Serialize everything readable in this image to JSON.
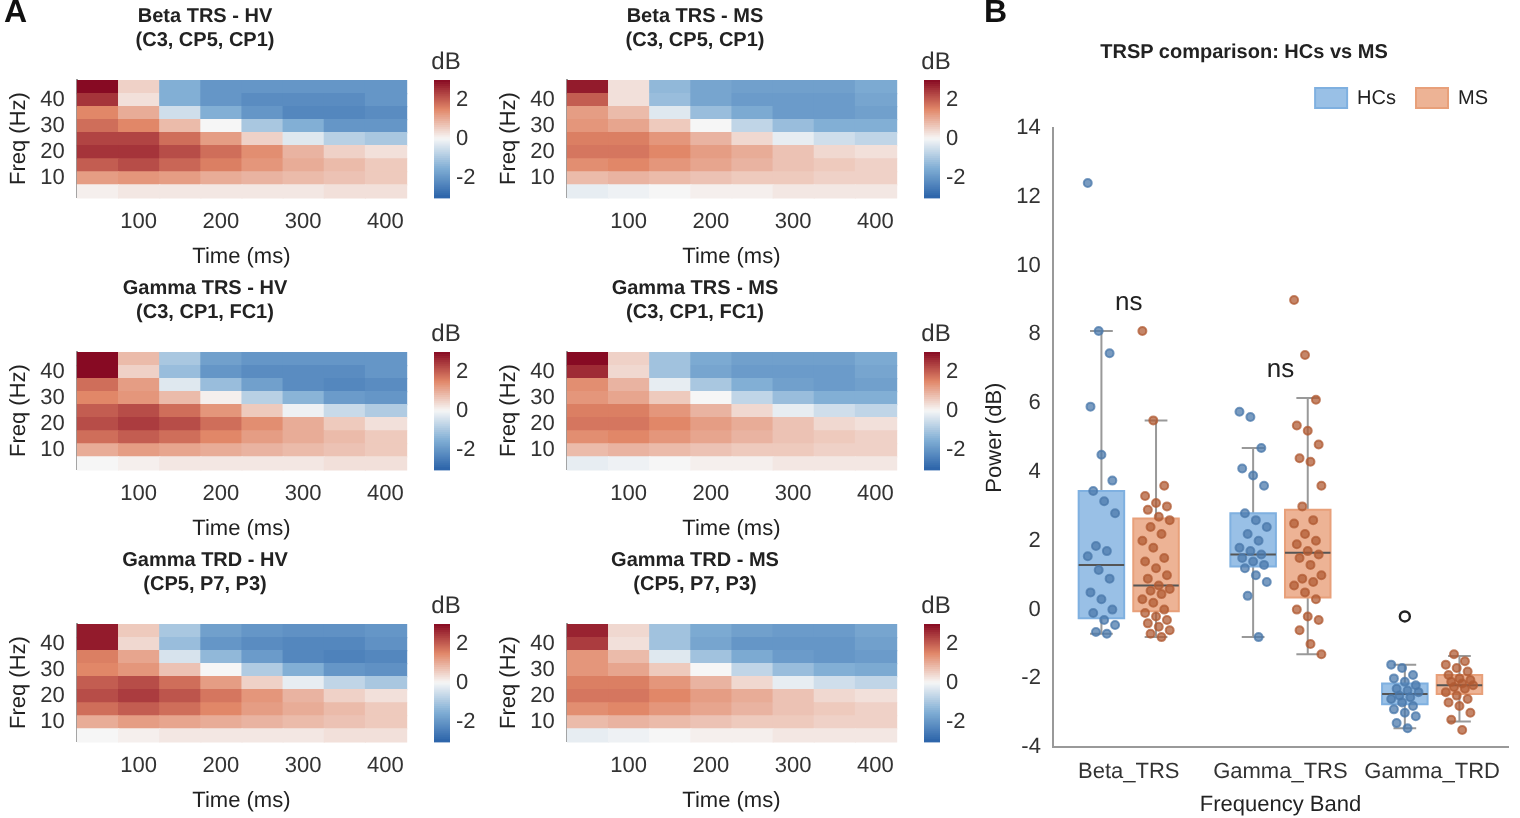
{
  "chart_data": [
    {
      "type": "heatmap",
      "title": "Beta TRS - HV",
      "subtitle": "(C3, CP5, CP1)",
      "xlabel": "Time (ms)",
      "ylabel": "Freq (Hz)",
      "clabel": "dB",
      "annotations": [
        "A"
      ],
      "categories": [
        null,
        "100",
        null,
        "200",
        null,
        "300",
        null,
        "400"
      ],
      "y_categories": [
        null,
        "40",
        null,
        "30",
        null,
        "20",
        null,
        "10",
        null
      ],
      "clim": [
        -3,
        3
      ],
      "cticks": [
        -2,
        0,
        2
      ],
      "cells": [
        [
          3,
          0.5,
          -1.5,
          -2,
          -2,
          -2,
          -2,
          -2
        ],
        [
          2.5,
          0.3,
          -1.5,
          -2,
          -2.2,
          -2.2,
          -2.2,
          -2
        ],
        [
          1.5,
          1,
          -0.5,
          -1.5,
          -2,
          -2.3,
          -2.3,
          -2.2
        ],
        [
          1.8,
          1.5,
          0.8,
          0,
          -1,
          -1.5,
          -2,
          -2
        ],
        [
          2.3,
          2.3,
          1.8,
          1.2,
          0.5,
          -0.3,
          -0.8,
          -1
        ],
        [
          2.5,
          2.5,
          2.2,
          1.8,
          1.4,
          0.9,
          0.5,
          0.3
        ],
        [
          2,
          2.2,
          1.9,
          1.6,
          1.3,
          1,
          0.8,
          0.6
        ],
        [
          1.2,
          1.3,
          1.2,
          1,
          0.9,
          0.8,
          0.7,
          0.6
        ],
        [
          0.1,
          0.2,
          0.2,
          0.2,
          0.2,
          0.2,
          0.3,
          0.3
        ]
      ]
    },
    {
      "type": "heatmap",
      "title": "Beta TRS - MS",
      "subtitle": "(C3, CP5, CP1)",
      "xlabel": "Time (ms)",
      "ylabel": "Freq (Hz)",
      "clabel": "dB",
      "categories": [
        null,
        "100",
        null,
        "200",
        null,
        "300",
        null,
        "400"
      ],
      "y_categories": [
        null,
        "40",
        null,
        "30",
        null,
        "20",
        null,
        "10",
        null
      ],
      "clim": [
        -3,
        3
      ],
      "cticks": [
        -2,
        0,
        2
      ],
      "cells": [
        [
          2.8,
          0.3,
          -1.3,
          -1.7,
          -1.8,
          -1.8,
          -1.8,
          -1.6
        ],
        [
          2,
          0.3,
          -1.2,
          -1.7,
          -1.9,
          -1.9,
          -1.9,
          -1.7
        ],
        [
          1.2,
          0.8,
          -0.3,
          -1.2,
          -1.6,
          -1.9,
          -1.9,
          -1.8
        ],
        [
          1.3,
          1.1,
          0.6,
          0,
          -0.7,
          -1.2,
          -1.5,
          -1.5
        ],
        [
          1.6,
          1.6,
          1.3,
          0.9,
          0.4,
          -0.2,
          -0.5,
          -0.7
        ],
        [
          1.7,
          1.7,
          1.5,
          1.2,
          1,
          0.7,
          0.4,
          0.3
        ],
        [
          1.4,
          1.5,
          1.3,
          1.1,
          0.9,
          0.7,
          0.6,
          0.5
        ],
        [
          0.8,
          0.9,
          0.8,
          0.7,
          0.6,
          0.6,
          0.5,
          0.5
        ],
        [
          -0.2,
          -0.1,
          0,
          0.1,
          0.1,
          0.2,
          0.2,
          0.2
        ]
      ]
    },
    {
      "type": "heatmap",
      "title": "Gamma TRS - HV",
      "subtitle": "(C3, CP1, FC1)",
      "xlabel": "Time (ms)",
      "ylabel": "Freq (Hz)",
      "clabel": "dB",
      "categories": [
        null,
        "100",
        null,
        "200",
        null,
        "300",
        null,
        "400"
      ],
      "y_categories": [
        null,
        "40",
        null,
        "30",
        null,
        "20",
        null,
        "10",
        null
      ],
      "clim": [
        -3,
        3
      ],
      "cticks": [
        -2,
        0,
        2
      ],
      "cells": [
        [
          3,
          0.8,
          -1,
          -1.8,
          -2,
          -2,
          -2,
          -2
        ],
        [
          3,
          0.5,
          -1.2,
          -2,
          -2.2,
          -2.2,
          -2.2,
          -2
        ],
        [
          1.8,
          1.2,
          -0.3,
          -1.2,
          -1.8,
          -2.2,
          -2.3,
          -2.2
        ],
        [
          1.5,
          1.3,
          0.8,
          0.1,
          -0.8,
          -1.4,
          -1.9,
          -2
        ],
        [
          2,
          2.2,
          1.8,
          1.3,
          0.6,
          -0.1,
          -0.6,
          -0.9
        ],
        [
          2.2,
          2.4,
          2.2,
          1.8,
          1.4,
          1,
          0.6,
          0.3
        ],
        [
          1.8,
          2,
          1.8,
          1.5,
          1.2,
          1,
          0.8,
          0.6
        ],
        [
          1,
          1.2,
          1.1,
          1,
          0.9,
          0.8,
          0.7,
          0.6
        ],
        [
          0,
          0.1,
          0.2,
          0.2,
          0.2,
          0.2,
          0.3,
          0.3
        ]
      ]
    },
    {
      "type": "heatmap",
      "title": "Gamma TRS - MS",
      "subtitle": "(C3, CP1, FC1)",
      "xlabel": "Time (ms)",
      "ylabel": "Freq (Hz)",
      "clabel": "dB",
      "categories": [
        null,
        "100",
        null,
        "200",
        null,
        "300",
        null,
        "400"
      ],
      "y_categories": [
        null,
        "40",
        null,
        "30",
        null,
        "20",
        null,
        "10",
        null
      ],
      "clim": [
        -3,
        3
      ],
      "cticks": [
        -2,
        0,
        2
      ],
      "cells": [
        [
          3,
          0.5,
          -1.1,
          -1.6,
          -1.8,
          -1.8,
          -1.8,
          -1.6
        ],
        [
          2.6,
          0.4,
          -1.1,
          -1.7,
          -1.9,
          -1.9,
          -1.9,
          -1.7
        ],
        [
          1.4,
          0.9,
          -0.2,
          -1,
          -1.5,
          -1.8,
          -1.9,
          -1.8
        ],
        [
          1.3,
          1.1,
          0.6,
          0,
          -0.7,
          -1.2,
          -1.5,
          -1.5
        ],
        [
          1.6,
          1.6,
          1.3,
          0.9,
          0.4,
          -0.2,
          -0.5,
          -0.7
        ],
        [
          1.7,
          1.7,
          1.5,
          1.2,
          1,
          0.7,
          0.4,
          0.3
        ],
        [
          1.4,
          1.5,
          1.3,
          1.1,
          0.9,
          0.7,
          0.6,
          0.5
        ],
        [
          0.8,
          0.9,
          0.8,
          0.7,
          0.6,
          0.6,
          0.5,
          0.5
        ],
        [
          -0.2,
          -0.1,
          0,
          0.1,
          0.1,
          0.2,
          0.2,
          0.2
        ]
      ]
    },
    {
      "type": "heatmap",
      "title": "Gamma TRD - HV",
      "subtitle": "(CP5, P7, P3)",
      "xlabel": "Time (ms)",
      "ylabel": "Freq (Hz)",
      "clabel": "dB",
      "categories": [
        null,
        "100",
        null,
        "200",
        null,
        "300",
        null,
        "400"
      ],
      "y_categories": [
        null,
        "40",
        null,
        "30",
        null,
        "20",
        null,
        "10",
        null
      ],
      "clim": [
        -3,
        3
      ],
      "cticks": [
        -2,
        0,
        2
      ],
      "cells": [
        [
          2.8,
          0.6,
          -1,
          -1.8,
          -2,
          -2.1,
          -2.1,
          -2
        ],
        [
          2.8,
          0.4,
          -1.2,
          -2,
          -2.2,
          -2.3,
          -2.3,
          -2.1
        ],
        [
          1.6,
          1.1,
          -0.4,
          -1.3,
          -1.9,
          -2.3,
          -2.4,
          -2.3
        ],
        [
          1.5,
          1.3,
          0.7,
          0,
          -0.9,
          -1.5,
          -2,
          -2.1
        ],
        [
          2,
          2.2,
          1.8,
          1.2,
          0.5,
          -0.2,
          -0.7,
          -1
        ],
        [
          2.2,
          2.4,
          2.1,
          1.7,
          1.3,
          0.9,
          0.5,
          0.3
        ],
        [
          1.8,
          2,
          1.8,
          1.5,
          1.2,
          1,
          0.8,
          0.6
        ],
        [
          1,
          1.2,
          1.1,
          1,
          0.9,
          0.8,
          0.7,
          0.6
        ],
        [
          0,
          0.1,
          0.2,
          0.2,
          0.2,
          0.2,
          0.3,
          0.3
        ]
      ]
    },
    {
      "type": "heatmap",
      "title": "Gamma TRD - MS",
      "subtitle": "(CP5, P7, P3)",
      "xlabel": "Time (ms)",
      "ylabel": "Freq (Hz)",
      "clabel": "dB",
      "categories": [
        null,
        "100",
        null,
        "200",
        null,
        "300",
        null,
        "400"
      ],
      "y_categories": [
        null,
        "40",
        null,
        "30",
        null,
        "20",
        null,
        "10",
        null
      ],
      "clim": [
        -3,
        3
      ],
      "cticks": [
        -2,
        0,
        2
      ],
      "cells": [
        [
          2.7,
          0.4,
          -1.1,
          -1.6,
          -1.8,
          -1.9,
          -1.9,
          -1.7
        ],
        [
          2.4,
          0.3,
          -1.1,
          -1.7,
          -2,
          -2,
          -2,
          -1.8
        ],
        [
          1.3,
          0.8,
          -0.3,
          -1.1,
          -1.6,
          -1.9,
          -2,
          -1.9
        ],
        [
          1.3,
          1.1,
          0.6,
          0,
          -0.7,
          -1.2,
          -1.5,
          -1.6
        ],
        [
          1.6,
          1.6,
          1.3,
          0.9,
          0.4,
          -0.2,
          -0.5,
          -0.7
        ],
        [
          1.7,
          1.7,
          1.5,
          1.2,
          1,
          0.7,
          0.4,
          0.3
        ],
        [
          1.4,
          1.5,
          1.3,
          1.1,
          0.9,
          0.7,
          0.6,
          0.5
        ],
        [
          0.8,
          0.9,
          0.8,
          0.7,
          0.6,
          0.6,
          0.5,
          0.5
        ],
        [
          -0.2,
          -0.1,
          0,
          0.1,
          0.1,
          0.2,
          0.2,
          0.2
        ]
      ]
    },
    {
      "type": "box",
      "title": "TRSP comparison: HCs vs MS",
      "xlabel": "Frequency Band",
      "ylabel": "Power (dB)",
      "categories": [
        "Beta_TRS",
        "Gamma_TRS",
        "Gamma_TRD"
      ],
      "ylim": [
        -4,
        14
      ],
      "yticks": [
        -4,
        -2,
        0,
        2,
        4,
        6,
        8,
        10,
        12,
        14
      ],
      "legend": "top right",
      "marker": "circle",
      "annotations": [
        "B",
        "ns",
        "ns"
      ],
      "series": [
        {
          "name": "HCs",
          "type": "box",
          "color": "#7fb0e0",
          "boxes": [
            {
              "low": -0.7,
              "q1": -0.25,
              "median": 1.3,
              "q3": 3.45,
              "high": 8.1
            },
            {
              "low": -0.8,
              "q1": 1.25,
              "median": 1.6,
              "q3": 2.8,
              "high": 4.7
            },
            {
              "low": -3.45,
              "q1": -2.75,
              "median": -2.45,
              "q3": -2.15,
              "high": -1.6,
              "outliers": [
                -0.2
              ]
            }
          ]
        },
        {
          "name": "MS",
          "type": "box",
          "color": "#e8a07a",
          "boxes": [
            {
              "low": -0.8,
              "q1": -0.05,
              "median": 0.7,
              "q3": 2.65,
              "high": 5.5
            },
            {
              "low": -1.3,
              "q1": 0.35,
              "median": 1.65,
              "q3": 2.9,
              "high": 6.15
            },
            {
              "low": -3.25,
              "q1": -2.45,
              "median": -2.2,
              "q3": -1.9,
              "high": -1.35
            }
          ]
        },
        {
          "type": "scatter",
          "color": "#4a78aa",
          "x": [
            "Beta_TRS",
            "Beta_TRS",
            "Beta_TRS",
            "Beta_TRS",
            "Beta_TRS",
            "Beta_TRS",
            "Beta_TRS",
            "Beta_TRS",
            "Beta_TRS",
            "Beta_TRS",
            "Beta_TRS",
            "Beta_TRS",
            "Beta_TRS",
            "Beta_TRS",
            "Beta_TRS",
            "Beta_TRS",
            "Beta_TRS",
            "Beta_TRS",
            "Beta_TRS",
            "Beta_TRS",
            "Beta_TRS",
            "Beta_TRS",
            "Gamma_TRS",
            "Gamma_TRS",
            "Gamma_TRS",
            "Gamma_TRS",
            "Gamma_TRS",
            "Gamma_TRS",
            "Gamma_TRS",
            "Gamma_TRS",
            "Gamma_TRS",
            "Gamma_TRS",
            "Gamma_TRS",
            "Gamma_TRS",
            "Gamma_TRS",
            "Gamma_TRS",
            "Gamma_TRS",
            "Gamma_TRS",
            "Gamma_TRS",
            "Gamma_TRS",
            "Gamma_TRS",
            "Gamma_TRS",
            "Gamma_TRS",
            "Gamma_TRS",
            "Gamma_TRD",
            "Gamma_TRD",
            "Gamma_TRD",
            "Gamma_TRD",
            "Gamma_TRD",
            "Gamma_TRD",
            "Gamma_TRD",
            "Gamma_TRD",
            "Gamma_TRD",
            "Gamma_TRD",
            "Gamma_TRD",
            "Gamma_TRD",
            "Gamma_TRD",
            "Gamma_TRD",
            "Gamma_TRD",
            "Gamma_TRD",
            "Gamma_TRD",
            "Gamma_TRD",
            "Gamma_TRD"
          ],
          "values": [
            12.4,
            8.1,
            7.45,
            5.9,
            4.5,
            3.75,
            3.45,
            3.15,
            2.8,
            1.85,
            1.7,
            1.55,
            1.15,
            0.9,
            0.5,
            0.3,
            0,
            -0.1,
            -0.3,
            -0.45,
            -0.65,
            -0.7,
            5.75,
            5.6,
            4.7,
            4.1,
            3.9,
            3.6,
            2.8,
            2.6,
            2.4,
            2.2,
            2,
            1.8,
            1.7,
            1.6,
            1.5,
            1.4,
            1.3,
            1.2,
            1,
            0.8,
            0.4,
            -0.8,
            -1.6,
            -1.7,
            -1.9,
            -2,
            -2.1,
            -2.2,
            -2.3,
            -2.35,
            -2.4,
            -2.5,
            -2.55,
            -2.6,
            -2.7,
            -2.8,
            -2.9,
            -3,
            -3.1,
            -3.3,
            -3.45
          ]
        },
        {
          "type": "scatter",
          "color": "#b05a32",
          "x": [
            "Beta_TRS",
            "Beta_TRS",
            "Beta_TRS",
            "Beta_TRS",
            "Beta_TRS",
            "Beta_TRS",
            "Beta_TRS",
            "Beta_TRS",
            "Beta_TRS",
            "Beta_TRS",
            "Beta_TRS",
            "Beta_TRS",
            "Beta_TRS",
            "Beta_TRS",
            "Beta_TRS",
            "Beta_TRS",
            "Beta_TRS",
            "Beta_TRS",
            "Beta_TRS",
            "Beta_TRS",
            "Beta_TRS",
            "Beta_TRS",
            "Beta_TRS",
            "Beta_TRS",
            "Beta_TRS",
            "Beta_TRS",
            "Beta_TRS",
            "Beta_TRS",
            "Beta_TRS",
            "Beta_TRS",
            "Beta_TRS",
            "Beta_TRS",
            "Beta_TRS",
            "Gamma_TRS",
            "Gamma_TRS",
            "Gamma_TRS",
            "Gamma_TRS",
            "Gamma_TRS",
            "Gamma_TRS",
            "Gamma_TRS",
            "Gamma_TRS",
            "Gamma_TRS",
            "Gamma_TRS",
            "Gamma_TRS",
            "Gamma_TRS",
            "Gamma_TRS",
            "Gamma_TRS",
            "Gamma_TRS",
            "Gamma_TRS",
            "Gamma_TRS",
            "Gamma_TRS",
            "Gamma_TRS",
            "Gamma_TRS",
            "Gamma_TRS",
            "Gamma_TRS",
            "Gamma_TRS",
            "Gamma_TRS",
            "Gamma_TRS",
            "Gamma_TRS",
            "Gamma_TRS",
            "Gamma_TRS",
            "Gamma_TRS",
            "Gamma_TRS",
            "Gamma_TRS",
            "Gamma_TRD",
            "Gamma_TRD",
            "Gamma_TRD",
            "Gamma_TRD",
            "Gamma_TRD",
            "Gamma_TRD",
            "Gamma_TRD",
            "Gamma_TRD",
            "Gamma_TRD",
            "Gamma_TRD",
            "Gamma_TRD",
            "Gamma_TRD",
            "Gamma_TRD",
            "Gamma_TRD",
            "Gamma_TRD",
            "Gamma_TRD",
            "Gamma_TRD",
            "Gamma_TRD",
            "Gamma_TRD",
            "Gamma_TRD",
            "Gamma_TRD"
          ],
          "values": [
            8.1,
            5.5,
            3.6,
            3.3,
            3.1,
            3,
            2.9,
            2.7,
            2.6,
            2.4,
            2.2,
            2,
            1.8,
            1.5,
            1.4,
            1.2,
            1,
            0.9,
            0.7,
            0.6,
            0.55,
            0.45,
            0.3,
            0.2,
            0,
            -0.1,
            -0.2,
            -0.3,
            -0.4,
            -0.5,
            -0.6,
            -0.7,
            -0.8,
            9,
            7.4,
            6.1,
            5.35,
            5.2,
            4.8,
            4.4,
            4.3,
            3.6,
            3,
            2.6,
            2.5,
            2.2,
            2,
            1.9,
            1.7,
            1.6,
            1.5,
            1.3,
            1,
            0.9,
            0.8,
            0.7,
            0.5,
            0.3,
            0,
            -0.2,
            -0.3,
            -0.6,
            -1,
            -1.3,
            -1.3,
            -1.5,
            -1.6,
            -1.7,
            -1.8,
            -1.9,
            -2,
            -2.05,
            -2.1,
            -2.15,
            -2.2,
            -2.25,
            -2.3,
            -2.4,
            -2.5,
            -2.6,
            -2.7,
            -2.8,
            -3,
            -3.2,
            -3.5
          ]
        }
      ]
    }
  ]
}
